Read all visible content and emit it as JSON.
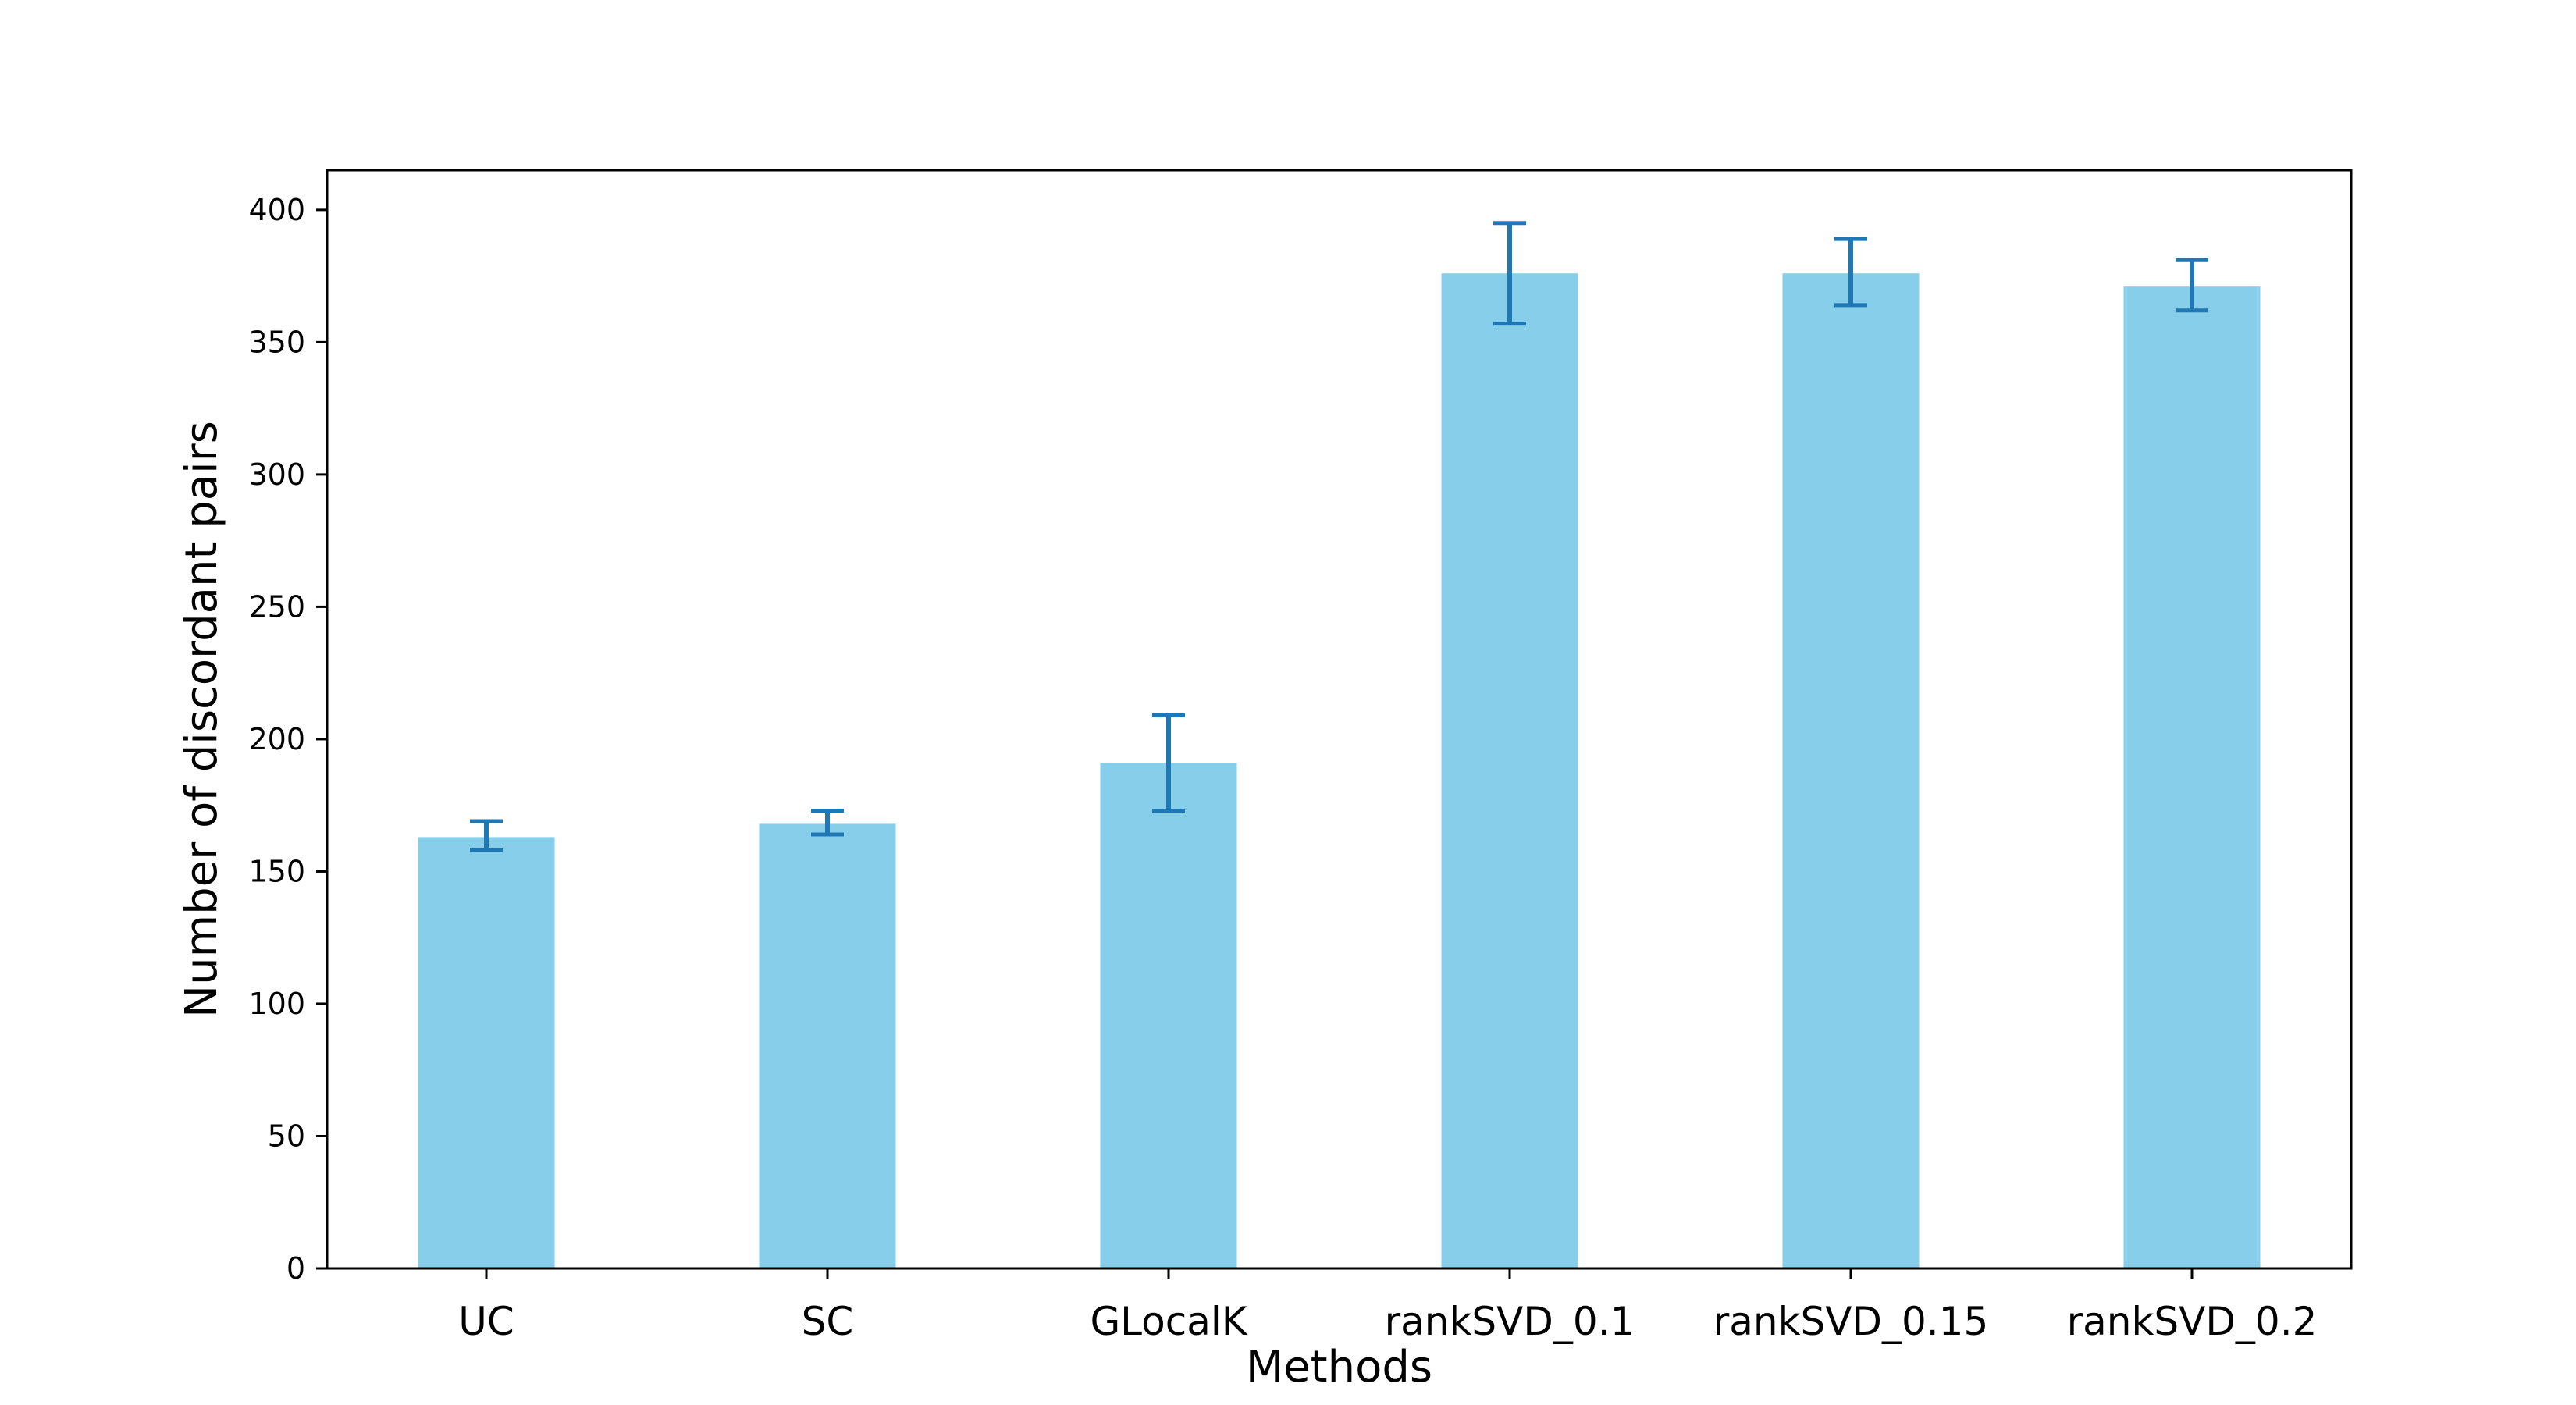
{
  "chart_data": {
    "type": "bar",
    "categories": [
      "UC",
      "SC",
      "GLocalK",
      "rankSVD_0.1",
      "rankSVD_0.15",
      "rankSVD_0.2"
    ],
    "values": [
      163,
      168,
      191,
      376,
      376,
      371
    ],
    "error_low": [
      158,
      164,
      173,
      357,
      364,
      362
    ],
    "error_high": [
      169,
      173,
      209,
      395,
      389,
      381
    ],
    "title": "",
    "xlabel": "Methods",
    "ylabel": "Number of discordant pairs",
    "ylim": [
      0,
      415
    ],
    "yticks": [
      "0",
      "50",
      "100",
      "150",
      "200",
      "250",
      "300",
      "350",
      "400"
    ],
    "grid": false,
    "bar_color": "#87CEEB",
    "error_color": "#1F77B4"
  }
}
